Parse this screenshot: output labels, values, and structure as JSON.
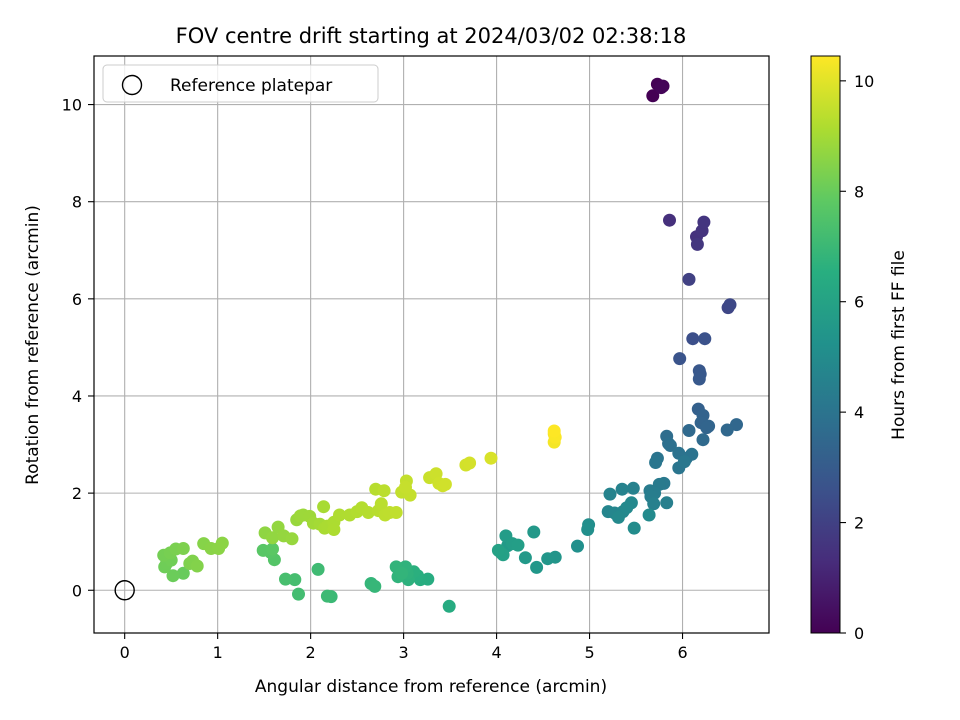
{
  "chart_data": {
    "type": "scatter",
    "title": "FOV centre drift starting at 2024/03/02 02:38:18",
    "xlabel": "Angular distance from reference (arcmin)",
    "ylabel": "Rotation from reference (arcmin)",
    "xlim": [
      -0.33,
      6.93
    ],
    "ylim": [
      -0.88,
      11.0
    ],
    "xticks": [
      0,
      1,
      2,
      3,
      4,
      5,
      6
    ],
    "yticks": [
      0,
      2,
      4,
      6,
      8,
      10
    ],
    "grid": true,
    "colormap": "viridis",
    "colorbar": {
      "label": "Hours from first FF file",
      "range": [
        0,
        10.45
      ],
      "ticks": [
        0,
        2,
        4,
        6,
        8,
        10
      ]
    },
    "legend": {
      "placement": "top-left",
      "entries": [
        {
          "label": "Reference platepar",
          "marker": "open-circle"
        }
      ]
    },
    "reference_point": [
      0,
      0
    ],
    "points": [
      [
        5.68,
        10.18,
        0.0
      ],
      [
        5.73,
        10.42,
        0.05
      ],
      [
        5.79,
        10.38,
        0.1
      ],
      [
        5.77,
        10.35,
        0.12
      ],
      [
        5.86,
        7.62,
        1.4
      ],
      [
        6.15,
        7.28,
        1.5
      ],
      [
        6.21,
        7.4,
        1.55
      ],
      [
        6.23,
        7.58,
        1.6
      ],
      [
        6.16,
        7.12,
        1.65
      ],
      [
        6.07,
        6.4,
        2.0
      ],
      [
        6.49,
        5.82,
        2.2
      ],
      [
        6.51,
        5.88,
        2.25
      ],
      [
        6.11,
        5.18,
        2.5
      ],
      [
        6.24,
        5.18,
        2.6
      ],
      [
        5.97,
        4.77,
        2.7
      ],
      [
        6.18,
        4.52,
        2.8
      ],
      [
        6.19,
        4.45,
        2.85
      ],
      [
        6.18,
        4.35,
        2.9
      ],
      [
        6.17,
        3.73,
        3.2
      ],
      [
        6.22,
        3.6,
        3.3
      ],
      [
        6.2,
        3.45,
        3.35
      ],
      [
        6.28,
        3.38,
        3.4
      ],
      [
        6.58,
        3.41,
        3.45
      ],
      [
        6.48,
        3.3,
        3.5
      ],
      [
        6.07,
        3.29,
        3.55
      ],
      [
        6.22,
        3.1,
        3.6
      ],
      [
        6.26,
        3.35,
        3.38
      ],
      [
        5.83,
        3.17,
        3.7
      ],
      [
        5.85,
        3.02,
        3.8
      ],
      [
        5.87,
        2.98,
        3.85
      ],
      [
        5.96,
        2.82,
        3.9
      ],
      [
        6.04,
        2.72,
        3.95
      ],
      [
        6.1,
        2.8,
        3.98
      ],
      [
        5.73,
        2.72,
        4.0
      ],
      [
        5.96,
        2.52,
        4.05
      ],
      [
        5.71,
        2.63,
        4.1
      ],
      [
        6.02,
        2.65,
        4.12
      ],
      [
        5.8,
        2.2,
        4.2
      ],
      [
        5.75,
        2.18,
        4.25
      ],
      [
        5.65,
        2.05,
        4.3
      ],
      [
        5.7,
        2.0,
        4.35
      ],
      [
        5.66,
        1.93,
        4.4
      ],
      [
        5.83,
        1.8,
        4.45
      ],
      [
        5.69,
        1.78,
        4.5
      ],
      [
        5.47,
        2.1,
        4.55
      ],
      [
        5.35,
        2.08,
        4.6
      ],
      [
        5.22,
        1.98,
        4.65
      ],
      [
        5.2,
        1.62,
        4.7
      ],
      [
        5.27,
        1.59,
        4.75
      ],
      [
        5.36,
        1.62,
        4.8
      ],
      [
        5.45,
        1.8,
        4.85
      ],
      [
        5.4,
        1.7,
        4.88
      ],
      [
        5.31,
        1.5,
        4.9
      ],
      [
        5.64,
        1.55,
        4.95
      ],
      [
        5.48,
        1.28,
        5.0
      ],
      [
        4.99,
        1.35,
        5.1
      ],
      [
        4.98,
        1.25,
        5.15
      ],
      [
        4.87,
        0.91,
        5.2
      ],
      [
        4.63,
        0.68,
        5.4
      ],
      [
        4.55,
        0.65,
        5.45
      ],
      [
        4.43,
        0.47,
        5.5
      ],
      [
        4.4,
        1.2,
        5.55
      ],
      [
        4.31,
        0.67,
        5.6
      ],
      [
        4.12,
        0.92,
        5.65
      ],
      [
        4.1,
        1.12,
        5.7
      ],
      [
        4.17,
        0.96,
        5.75
      ],
      [
        4.23,
        0.93,
        5.8
      ],
      [
        4.05,
        0.77,
        5.85
      ],
      [
        4.07,
        0.73,
        5.9
      ],
      [
        4.02,
        0.82,
        5.95
      ],
      [
        3.49,
        -0.33,
        6.4
      ],
      [
        3.26,
        0.23,
        6.45
      ],
      [
        3.18,
        0.22,
        6.5
      ],
      [
        3.15,
        0.3,
        6.55
      ],
      [
        3.11,
        0.38,
        6.6
      ],
      [
        3.05,
        0.22,
        6.65
      ],
      [
        3.04,
        0.35,
        6.7
      ],
      [
        3.02,
        0.48,
        6.72
      ],
      [
        2.94,
        0.28,
        6.75
      ],
      [
        2.92,
        0.48,
        6.78
      ],
      [
        2.98,
        0.35,
        6.8
      ],
      [
        2.65,
        0.14,
        6.85
      ],
      [
        2.69,
        0.08,
        6.9
      ],
      [
        2.22,
        -0.13,
        7.0
      ],
      [
        2.18,
        -0.12,
        7.05
      ],
      [
        2.08,
        0.43,
        7.1
      ],
      [
        1.87,
        -0.08,
        7.2
      ],
      [
        1.83,
        0.22,
        7.25
      ],
      [
        1.73,
        0.23,
        7.3
      ],
      [
        1.61,
        0.63,
        7.6
      ],
      [
        1.57,
        0.78,
        7.65
      ],
      [
        1.49,
        0.82,
        7.7
      ],
      [
        1.59,
        0.85,
        7.75
      ],
      [
        0.63,
        0.35,
        8.0
      ],
      [
        0.52,
        0.3,
        8.05
      ],
      [
        0.43,
        0.48,
        8.1
      ],
      [
        0.45,
        0.55,
        8.12
      ],
      [
        0.5,
        0.62,
        8.15
      ],
      [
        0.42,
        0.72,
        8.2
      ],
      [
        0.49,
        0.77,
        8.25
      ],
      [
        0.55,
        0.85,
        8.3
      ],
      [
        0.63,
        0.86,
        8.35
      ],
      [
        0.7,
        0.55,
        8.38
      ],
      [
        0.73,
        0.6,
        8.4
      ],
      [
        0.78,
        0.5,
        8.45
      ],
      [
        0.85,
        0.96,
        8.5
      ],
      [
        0.93,
        0.86,
        8.55
      ],
      [
        1.01,
        0.86,
        8.58
      ],
      [
        1.05,
        0.97,
        8.6
      ],
      [
        1.51,
        1.18,
        8.65
      ],
      [
        1.59,
        1.08,
        8.7
      ],
      [
        1.65,
        1.3,
        8.72
      ],
      [
        1.71,
        1.12,
        8.75
      ],
      [
        1.8,
        1.06,
        8.78
      ],
      [
        1.85,
        1.45,
        8.8
      ],
      [
        1.92,
        1.55,
        8.85
      ],
      [
        1.89,
        1.53,
        8.88
      ],
      [
        1.99,
        1.52,
        8.9
      ],
      [
        2.03,
        1.38,
        8.95
      ],
      [
        2.1,
        1.36,
        9.0
      ],
      [
        2.14,
        1.72,
        9.05
      ],
      [
        2.15,
        1.28,
        9.08
      ],
      [
        2.18,
        1.32,
        9.1
      ],
      [
        2.25,
        1.4,
        9.12
      ],
      [
        2.25,
        1.25,
        9.15
      ],
      [
        2.31,
        1.55,
        9.18
      ],
      [
        2.42,
        1.55,
        9.2
      ],
      [
        2.5,
        1.62,
        9.22
      ],
      [
        2.55,
        1.7,
        9.25
      ],
      [
        2.62,
        1.6,
        9.28
      ],
      [
        2.7,
        2.08,
        9.3
      ],
      [
        2.73,
        1.64,
        9.32
      ],
      [
        2.76,
        1.78,
        9.35
      ],
      [
        2.79,
        2.05,
        9.38
      ],
      [
        2.8,
        1.55,
        9.4
      ],
      [
        2.85,
        1.6,
        9.42
      ],
      [
        2.92,
        1.6,
        9.45
      ],
      [
        2.98,
        2.02,
        9.48
      ],
      [
        3.03,
        2.25,
        9.5
      ],
      [
        3.07,
        1.96,
        9.52
      ],
      [
        3.02,
        2.12,
        9.55
      ],
      [
        3.28,
        2.32,
        9.6
      ],
      [
        3.33,
        2.35,
        9.62
      ],
      [
        3.35,
        2.4,
        9.65
      ],
      [
        3.38,
        2.2,
        9.68
      ],
      [
        3.42,
        2.15,
        9.7
      ],
      [
        3.45,
        2.18,
        9.72
      ],
      [
        3.67,
        2.58,
        9.75
      ],
      [
        3.71,
        2.62,
        9.78
      ],
      [
        3.94,
        2.72,
        9.85
      ],
      [
        4.62,
        3.05,
        10.3
      ],
      [
        4.62,
        3.22,
        10.35
      ],
      [
        4.63,
        3.15,
        10.4
      ],
      [
        4.62,
        3.28,
        10.45
      ]
    ]
  }
}
